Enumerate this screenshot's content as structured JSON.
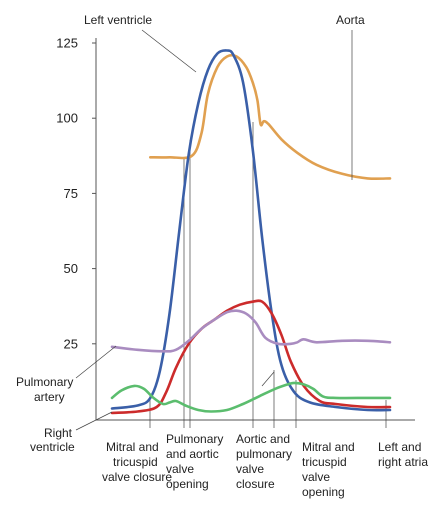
{
  "chart_data": {
    "type": "line",
    "title": "",
    "xlabel": "",
    "ylabel": "",
    "ylim": [
      0,
      125
    ],
    "yticks": [
      25,
      50,
      75,
      100,
      125
    ],
    "xlim": [
      0,
      100
    ],
    "grid": false,
    "series": [
      {
        "name": "Aorta",
        "color": "#e0a050",
        "points": [
          [
            12,
            87
          ],
          [
            18,
            87
          ],
          [
            25,
            87.5
          ],
          [
            28,
            95
          ],
          [
            30,
            108
          ],
          [
            33,
            117
          ],
          [
            36,
            120.5
          ],
          [
            39,
            120.5
          ],
          [
            42,
            117
          ],
          [
            44,
            112
          ],
          [
            45.5,
            106
          ],
          [
            46.5,
            98
          ],
          [
            47.5,
            99
          ],
          [
            49,
            98
          ],
          [
            53,
            93
          ],
          [
            58,
            88.5
          ],
          [
            64,
            84.5
          ],
          [
            72,
            81.5
          ],
          [
            80,
            80
          ],
          [
            87,
            80
          ]
        ]
      },
      {
        "name": "Left ventricle",
        "color": "#3a5fa8",
        "points": [
          [
            0,
            3.5
          ],
          [
            8,
            4.5
          ],
          [
            12,
            7
          ],
          [
            15,
            16
          ],
          [
            18,
            35
          ],
          [
            21,
            62
          ],
          [
            24,
            88
          ],
          [
            27,
            105
          ],
          [
            30,
            116
          ],
          [
            33,
            121.5
          ],
          [
            36,
            122.5
          ],
          [
            38,
            121
          ],
          [
            41,
            112
          ],
          [
            44,
            90
          ],
          [
            47,
            60
          ],
          [
            50,
            35
          ],
          [
            53,
            18
          ],
          [
            57,
            9
          ],
          [
            62,
            5.5
          ],
          [
            70,
            4
          ],
          [
            80,
            3
          ],
          [
            87,
            3
          ]
        ]
      },
      {
        "name": "",
        "color": "#cc2b2b",
        "points": [
          [
            0,
            2
          ],
          [
            8,
            2.5
          ],
          [
            14,
            4
          ],
          [
            17,
            9
          ],
          [
            20,
            17
          ],
          [
            24,
            25
          ],
          [
            28,
            30
          ],
          [
            32,
            33
          ],
          [
            36,
            36
          ],
          [
            40,
            38
          ],
          [
            44,
            39
          ],
          [
            47,
            39
          ],
          [
            50,
            35
          ],
          [
            53,
            28
          ],
          [
            56,
            19
          ],
          [
            60,
            11
          ],
          [
            65,
            6
          ],
          [
            70,
            5
          ],
          [
            80,
            4
          ],
          [
            87,
            4
          ]
        ]
      },
      {
        "name": "",
        "color": "#a98cc0",
        "points": [
          [
            0,
            24
          ],
          [
            8,
            23
          ],
          [
            16,
            22.5
          ],
          [
            20,
            23
          ],
          [
            24,
            26
          ],
          [
            28,
            30
          ],
          [
            32,
            33
          ],
          [
            36,
            35.5
          ],
          [
            39,
            36
          ],
          [
            42,
            35
          ],
          [
            45,
            32
          ],
          [
            48,
            27
          ],
          [
            52,
            25
          ],
          [
            56,
            25
          ],
          [
            58,
            25.5
          ],
          [
            60,
            26.5
          ],
          [
            64,
            25.5
          ],
          [
            72,
            26
          ],
          [
            80,
            26
          ],
          [
            87,
            25.5
          ]
        ]
      },
      {
        "name": "",
        "color": "#5bbd6e",
        "points": [
          [
            0,
            7
          ],
          [
            3,
            9.5
          ],
          [
            7,
            11
          ],
          [
            10,
            10
          ],
          [
            13,
            7
          ],
          [
            16,
            5
          ],
          [
            18,
            5.5
          ],
          [
            20,
            6
          ],
          [
            23,
            4.5
          ],
          [
            27,
            3
          ],
          [
            31,
            2.5
          ],
          [
            36,
            3
          ],
          [
            41,
            5
          ],
          [
            46,
            7.5
          ],
          [
            51,
            10
          ],
          [
            55,
            11.5
          ],
          [
            57,
            12
          ],
          [
            60,
            11.5
          ],
          [
            63,
            10
          ],
          [
            66,
            7.5
          ],
          [
            70,
            7
          ],
          [
            80,
            7
          ],
          [
            87,
            7
          ]
        ]
      }
    ],
    "annotations": [
      {
        "text": "Left ventricle"
      },
      {
        "text": "Aorta"
      },
      {
        "text": "Pulmonary artery"
      },
      {
        "text": "Right ventricle"
      },
      {
        "text": "Mitral and tricuspid valve closure"
      },
      {
        "text": "Pulmonary and aortic valve opening"
      },
      {
        "text": "Aortic and pulmonary valve closure"
      },
      {
        "text": "Mitral and tricuspid valve opening"
      },
      {
        "text": "Left and right atria"
      }
    ]
  },
  "labels": {
    "left_ventricle": "Left ventricle",
    "aorta": "Aorta",
    "pulmonary_artery_l1": "Pulmonary",
    "pulmonary_artery_l2": "artery",
    "right_ventricle_l1": "Right",
    "right_ventricle_l2": "ventricle",
    "mitral_closure_l1": "Mitral and",
    "mitral_closure_l2": "tricuspid",
    "mitral_closure_l3": "valve closure",
    "pa_opening_l1": "Pulmonary",
    "pa_opening_l2": "and aortic",
    "pa_opening_l3": "valve",
    "pa_opening_l4": "opening",
    "ap_closure_l1": "Aortic and",
    "ap_closure_l2": "pulmonary",
    "ap_closure_l3": "valve",
    "ap_closure_l4": "closure",
    "mitral_opening_l1": "Mitral and",
    "mitral_opening_l2": "tricuspid",
    "mitral_opening_l3": "valve",
    "mitral_opening_l4": "opening",
    "atria_l1": "Left and",
    "atria_l2": "right atria"
  }
}
